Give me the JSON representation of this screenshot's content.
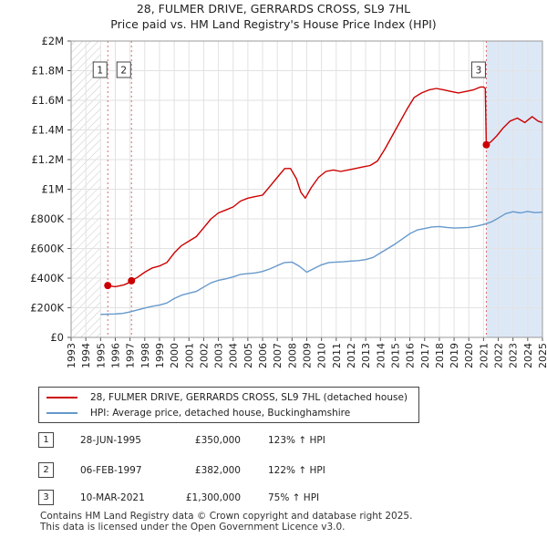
{
  "header": {
    "title_line1": "28, FULMER DRIVE, GERRARDS CROSS, SL9 7HL",
    "title_line2": "Price paid vs. HM Land Registry's House Price Index (HPI)"
  },
  "colors": {
    "property_line": "#cc0000",
    "hpi_line": "#6699cc",
    "shaded_band": "#dde8f7",
    "grid": "#e2e2e2",
    "marker_dashed": "#e06666"
  },
  "chart_data": {
    "type": "line",
    "xlim": [
      1993,
      2025
    ],
    "ylim": [
      0,
      2000000
    ],
    "x_ticks": [
      "1993",
      "1994",
      "1995",
      "1996",
      "1997",
      "1998",
      "1999",
      "2000",
      "2001",
      "2002",
      "2003",
      "2004",
      "2005",
      "2006",
      "2007",
      "2008",
      "2009",
      "2010",
      "2011",
      "2012",
      "2013",
      "2014",
      "2015",
      "2016",
      "2017",
      "2018",
      "2019",
      "2020",
      "2021",
      "2022",
      "2023",
      "2024",
      "2025"
    ],
    "y_ticks": [
      {
        "value": 0,
        "label": "£0"
      },
      {
        "value": 200000,
        "label": "£200K"
      },
      {
        "value": 400000,
        "label": "£400K"
      },
      {
        "value": 600000,
        "label": "£600K"
      },
      {
        "value": 800000,
        "label": "£800K"
      },
      {
        "value": 1000000,
        "label": "£1M"
      },
      {
        "value": 1200000,
        "label": "£1.2M"
      },
      {
        "value": 1400000,
        "label": "£1.4M"
      },
      {
        "value": 1600000,
        "label": "£1.6M"
      },
      {
        "value": 1800000,
        "label": "£1.8M"
      },
      {
        "value": 2000000,
        "label": "£2M"
      }
    ],
    "hatched_region": [
      1993,
      1995.0
    ],
    "shaded_region": [
      2021.19,
      2025
    ],
    "series": [
      {
        "name": "28, FULMER DRIVE, GERRARDS CROSS, SL9 7HL (detached house)",
        "color": "#cc0000",
        "points": [
          [
            1995.49,
            350000
          ],
          [
            1995.8,
            345000
          ],
          [
            1996.0,
            342000
          ],
          [
            1996.3,
            348000
          ],
          [
            1996.6,
            355000
          ],
          [
            1996.9,
            368000
          ],
          [
            1997.1,
            382000
          ],
          [
            1997.5,
            405000
          ],
          [
            1998.0,
            440000
          ],
          [
            1998.5,
            468000
          ],
          [
            1999.0,
            482000
          ],
          [
            1999.5,
            505000
          ],
          [
            2000.0,
            570000
          ],
          [
            2000.5,
            620000
          ],
          [
            2001.0,
            650000
          ],
          [
            2001.5,
            680000
          ],
          [
            2002.0,
            740000
          ],
          [
            2002.5,
            800000
          ],
          [
            2003.0,
            840000
          ],
          [
            2003.5,
            860000
          ],
          [
            2004.0,
            880000
          ],
          [
            2004.5,
            920000
          ],
          [
            2005.0,
            940000
          ],
          [
            2005.5,
            950000
          ],
          [
            2006.0,
            960000
          ],
          [
            2006.5,
            1020000
          ],
          [
            2007.0,
            1080000
          ],
          [
            2007.5,
            1140000
          ],
          [
            2007.9,
            1140000
          ],
          [
            2008.3,
            1070000
          ],
          [
            2008.6,
            980000
          ],
          [
            2008.9,
            940000
          ],
          [
            2009.3,
            1010000
          ],
          [
            2009.8,
            1080000
          ],
          [
            2010.3,
            1120000
          ],
          [
            2010.8,
            1130000
          ],
          [
            2011.3,
            1120000
          ],
          [
            2011.8,
            1130000
          ],
          [
            2012.3,
            1140000
          ],
          [
            2012.8,
            1150000
          ],
          [
            2013.3,
            1160000
          ],
          [
            2013.8,
            1190000
          ],
          [
            2014.3,
            1270000
          ],
          [
            2014.8,
            1360000
          ],
          [
            2015.3,
            1450000
          ],
          [
            2015.8,
            1540000
          ],
          [
            2016.3,
            1620000
          ],
          [
            2016.8,
            1650000
          ],
          [
            2017.3,
            1670000
          ],
          [
            2017.8,
            1680000
          ],
          [
            2018.3,
            1670000
          ],
          [
            2018.8,
            1660000
          ],
          [
            2019.3,
            1650000
          ],
          [
            2019.8,
            1660000
          ],
          [
            2020.3,
            1670000
          ],
          [
            2020.8,
            1690000
          ],
          [
            2021.0,
            1690000
          ],
          [
            2021.12,
            1680000
          ],
          [
            2021.19,
            1300000
          ],
          [
            2021.5,
            1320000
          ],
          [
            2021.9,
            1360000
          ],
          [
            2022.3,
            1410000
          ],
          [
            2022.8,
            1460000
          ],
          [
            2023.3,
            1480000
          ],
          [
            2023.8,
            1450000
          ],
          [
            2024.3,
            1490000
          ],
          [
            2024.7,
            1460000
          ],
          [
            2025.0,
            1450000
          ]
        ]
      },
      {
        "name": "HPI: Average price, detached house, Buckinghamshire",
        "color": "#6699cc",
        "points": [
          [
            1995.0,
            155000
          ],
          [
            1995.5,
            157000
          ],
          [
            1996.0,
            158000
          ],
          [
            1996.5,
            162000
          ],
          [
            1997.0,
            172000
          ],
          [
            1997.5,
            185000
          ],
          [
            1998.0,
            198000
          ],
          [
            1998.5,
            210000
          ],
          [
            1999.0,
            218000
          ],
          [
            1999.5,
            232000
          ],
          [
            2000.0,
            262000
          ],
          [
            2000.5,
            285000
          ],
          [
            2001.0,
            298000
          ],
          [
            2001.5,
            310000
          ],
          [
            2002.0,
            340000
          ],
          [
            2002.5,
            368000
          ],
          [
            2003.0,
            385000
          ],
          [
            2003.5,
            395000
          ],
          [
            2004.0,
            408000
          ],
          [
            2004.5,
            425000
          ],
          [
            2005.0,
            430000
          ],
          [
            2005.5,
            435000
          ],
          [
            2006.0,
            445000
          ],
          [
            2006.5,
            462000
          ],
          [
            2007.0,
            485000
          ],
          [
            2007.5,
            505000
          ],
          [
            2008.0,
            508000
          ],
          [
            2008.5,
            480000
          ],
          [
            2009.0,
            440000
          ],
          [
            2009.5,
            465000
          ],
          [
            2010.0,
            490000
          ],
          [
            2010.5,
            505000
          ],
          [
            2011.0,
            508000
          ],
          [
            2011.5,
            510000
          ],
          [
            2012.0,
            515000
          ],
          [
            2012.5,
            518000
          ],
          [
            2013.0,
            525000
          ],
          [
            2013.5,
            540000
          ],
          [
            2014.0,
            570000
          ],
          [
            2014.5,
            600000
          ],
          [
            2015.0,
            630000
          ],
          [
            2015.5,
            665000
          ],
          [
            2016.0,
            700000
          ],
          [
            2016.5,
            725000
          ],
          [
            2017.0,
            735000
          ],
          [
            2017.5,
            745000
          ],
          [
            2018.0,
            748000
          ],
          [
            2018.5,
            742000
          ],
          [
            2019.0,
            738000
          ],
          [
            2019.5,
            740000
          ],
          [
            2020.0,
            742000
          ],
          [
            2020.5,
            750000
          ],
          [
            2021.0,
            762000
          ],
          [
            2021.5,
            778000
          ],
          [
            2022.0,
            805000
          ],
          [
            2022.5,
            835000
          ],
          [
            2023.0,
            848000
          ],
          [
            2023.5,
            840000
          ],
          [
            2024.0,
            850000
          ],
          [
            2024.5,
            842000
          ],
          [
            2025.0,
            845000
          ]
        ]
      }
    ],
    "sales": [
      {
        "label": "1",
        "x": 1995.49,
        "y": 350000
      },
      {
        "label": "2",
        "x": 1997.1,
        "y": 382000
      },
      {
        "label": "3",
        "x": 2021.19,
        "y": 1300000
      }
    ]
  },
  "legend": {
    "property_label": "28, FULMER DRIVE, GERRARDS CROSS, SL9 7HL (detached house)",
    "hpi_label": "HPI: Average price, detached house, Buckinghamshire"
  },
  "transactions": [
    {
      "num": "1",
      "date": "28-JUN-1995",
      "price": "£350,000",
      "hpi": "123% ↑ HPI"
    },
    {
      "num": "2",
      "date": "06-FEB-1997",
      "price": "£382,000",
      "hpi": "122% ↑ HPI"
    },
    {
      "num": "3",
      "date": "10-MAR-2021",
      "price": "£1,300,000",
      "hpi": "75% ↑ HPI"
    }
  ],
  "footer": {
    "line1": "Contains HM Land Registry data © Crown copyright and database right 2025.",
    "line2": "This data is licensed under the Open Government Licence v3.0."
  }
}
